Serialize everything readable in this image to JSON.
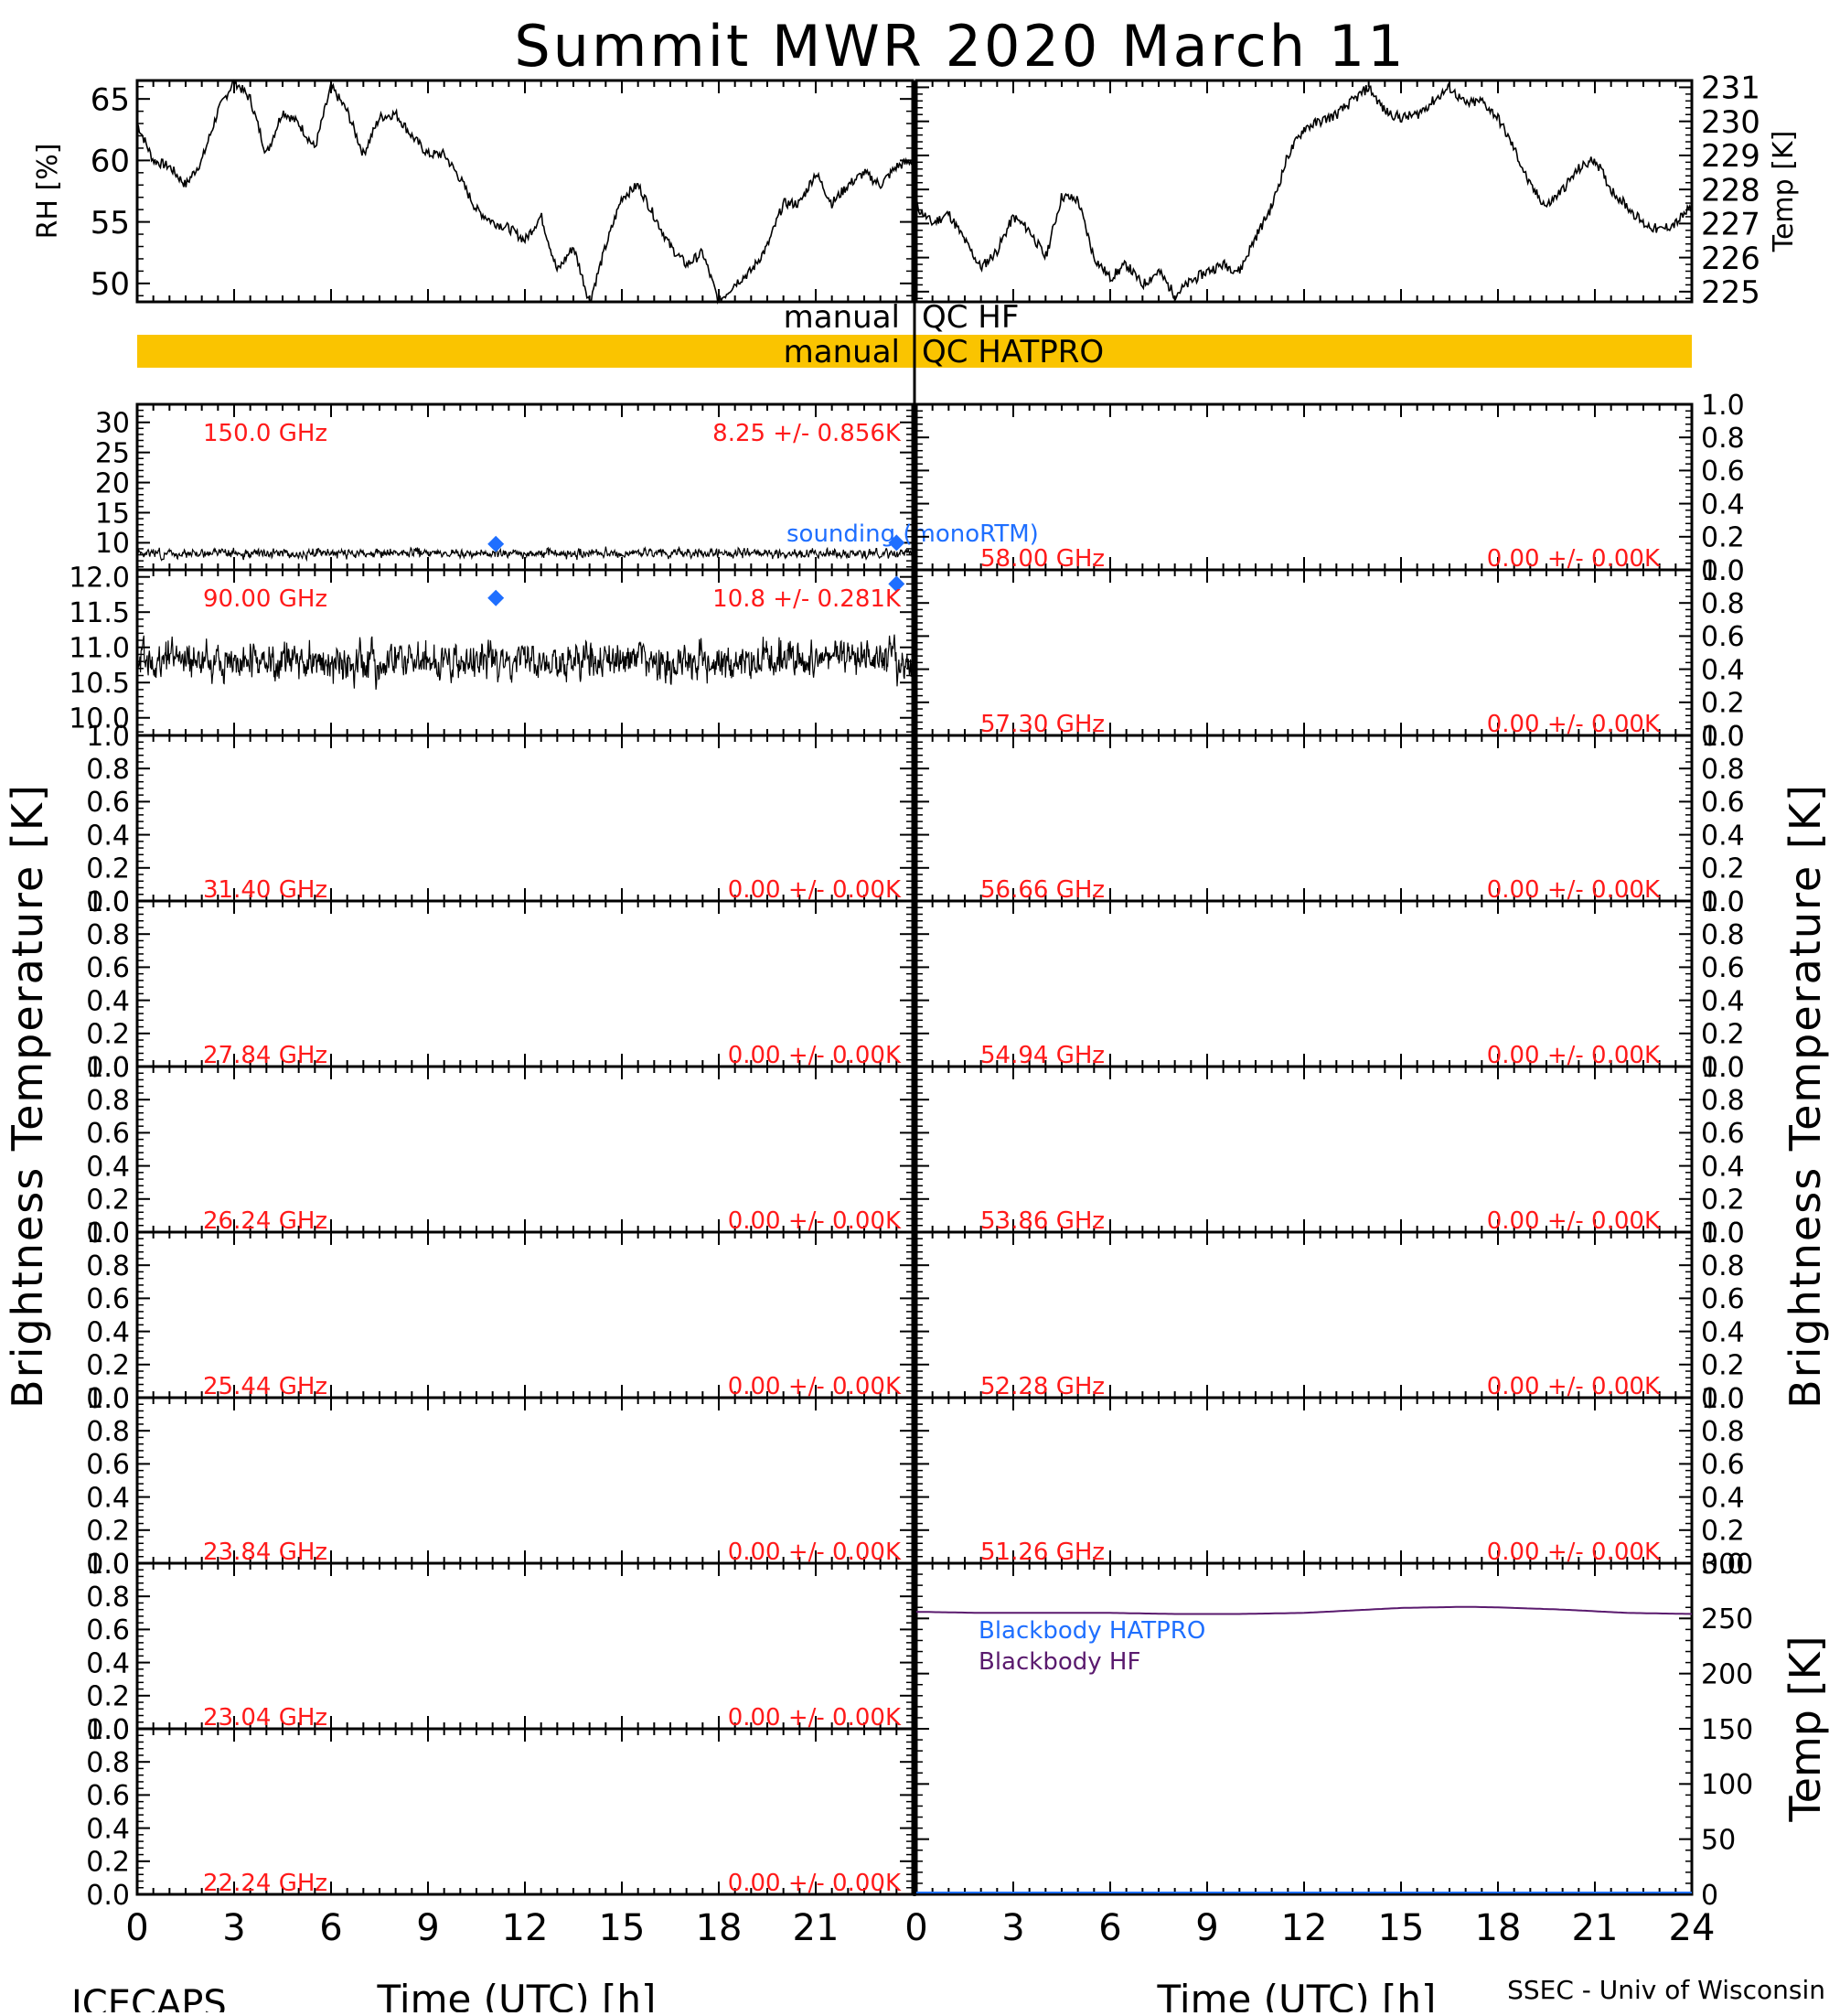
{
  "title": "Summit MWR 2020 March 11",
  "footer": {
    "left": "ICECAPS",
    "right": "SSEC - Univ of Wisconsin"
  },
  "x_axis": {
    "label": "Time (UTC) [h]",
    "ticks_left": [
      "0",
      "3",
      "6",
      "9",
      "12",
      "15",
      "18",
      "21"
    ],
    "ticks_right": [
      "0",
      "3",
      "6",
      "9",
      "12",
      "15",
      "18",
      "21",
      "24"
    ]
  },
  "left_ylabel": "Brightness Temperature [K]",
  "right_ylabel": "Brightness Temperature [K]",
  "qc": {
    "hf_prefix": "manual",
    "hf_label": "QC HF",
    "hatpro_prefix": "manual",
    "hatpro_label": "QC HATPRO",
    "hatpro_color": "#fac400"
  },
  "colors": {
    "series": "#000000",
    "label": "#ff1a1a",
    "sounding": "#1f6fff",
    "bb_hf": "#5a1a6e"
  },
  "chart_data": [
    {
      "type": "line",
      "id": "rh",
      "ylabel": "RH [%]",
      "xlim": [
        0,
        24
      ],
      "ylim": [
        48.5,
        66.5
      ],
      "yticks": [
        "50",
        "55",
        "60",
        "65"
      ],
      "x": [
        0,
        0.5,
        1,
        1.5,
        2,
        2.5,
        3,
        3.5,
        4,
        4.5,
        5,
        5.5,
        6,
        6.5,
        7,
        7.5,
        8,
        8.5,
        9,
        9.5,
        10,
        10.5,
        11,
        11.5,
        12,
        12.5,
        13,
        13.5,
        14,
        14.5,
        15,
        15.5,
        16,
        16.5,
        17,
        17.5,
        18,
        18.5,
        19,
        19.5,
        20,
        20.5,
        21,
        21.5,
        22,
        22.5,
        23,
        23.5,
        24
      ],
      "values": [
        63,
        60,
        59.5,
        58,
        60,
        64,
        66.5,
        65,
        60.5,
        64,
        63,
        61,
        66,
        64,
        60.5,
        63.5,
        63.8,
        62,
        60.5,
        60.5,
        58.5,
        56,
        55,
        54.5,
        53.5,
        55.5,
        51,
        53,
        48.5,
        53,
        57,
        58,
        55.5,
        53,
        51.5,
        52.5,
        48.5,
        50,
        51,
        53,
        56.5,
        56.5,
        59,
        56.5,
        58,
        59,
        58,
        59.5,
        60
      ]
    },
    {
      "type": "line",
      "id": "temp",
      "ylabel": "Temp [K]",
      "xlim": [
        0,
        24
      ],
      "ylim": [
        224.7,
        231.2
      ],
      "yticks": [
        "225",
        "226",
        "227",
        "228",
        "229",
        "230",
        "231"
      ],
      "x": [
        0,
        0.5,
        1,
        1.5,
        2,
        2.5,
        3,
        3.5,
        4,
        4.5,
        5,
        5.5,
        6,
        6.5,
        7,
        7.5,
        8,
        8.5,
        9,
        9.5,
        10,
        10.5,
        11,
        11.5,
        12,
        12.5,
        13,
        13.5,
        14,
        14.5,
        15,
        15.5,
        16,
        16.5,
        17,
        17.5,
        18,
        18.5,
        19,
        19.5,
        20,
        20.5,
        21,
        21.5,
        22,
        22.5,
        23,
        23.5,
        24
      ],
      "values": [
        227.5,
        227.0,
        227.3,
        226.5,
        225.7,
        226.2,
        227.2,
        226.8,
        226.0,
        227.8,
        227.7,
        226.0,
        225.4,
        225.8,
        225.2,
        225.6,
        224.9,
        225.3,
        225.6,
        225.8,
        225.6,
        226.6,
        227.5,
        229.0,
        229.8,
        230.0,
        230.2,
        230.6,
        231.0,
        230.3,
        230.1,
        230.2,
        230.6,
        231.0,
        230.5,
        230.6,
        230.1,
        229.2,
        228.1,
        227.5,
        228.0,
        228.6,
        228.9,
        228.0,
        227.5,
        227.0,
        226.8,
        227.0,
        227.5
      ]
    },
    {
      "type": "line",
      "id": "tb150",
      "ylim": [
        5.5,
        33
      ],
      "yticks": [
        "10",
        "15",
        "20",
        "25",
        "30"
      ],
      "freq_label": "150.0 GHz",
      "stat_label": "8.25 +/- 0.856K",
      "mean": 8.25,
      "std": 0.856,
      "sounding_label": "sounding (monoRTM)",
      "sounding": {
        "x": [
          11.1,
          23.5
        ],
        "values": [
          9.8,
          10.0
        ]
      }
    },
    {
      "type": "line",
      "id": "tb90",
      "ylim": [
        9.75,
        12.1
      ],
      "yticks": [
        "10.0",
        "10.5",
        "11.0",
        "11.5",
        "12.0"
      ],
      "freq_label": "90.00 GHz",
      "stat_label": "10.8 +/- 0.281K",
      "mean": 10.8,
      "std": 0.281,
      "sounding": {
        "x": [
          11.1,
          23.5
        ],
        "values": [
          11.7,
          11.9
        ]
      }
    },
    {
      "type": "line",
      "id": "tb3140",
      "ylim": [
        0,
        1
      ],
      "yticks": [
        "0.0",
        "0.2",
        "0.4",
        "0.6",
        "0.8",
        "1.0"
      ],
      "freq_label": "31.40 GHz",
      "stat_label": "0.00 +/- 0.00K",
      "values": []
    },
    {
      "type": "line",
      "id": "tb2784",
      "ylim": [
        0,
        1
      ],
      "yticks": [
        "0.0",
        "0.2",
        "0.4",
        "0.6",
        "0.8",
        "1.0"
      ],
      "freq_label": "27.84 GHz",
      "stat_label": "0.00 +/- 0.00K",
      "values": []
    },
    {
      "type": "line",
      "id": "tb2624",
      "ylim": [
        0,
        1
      ],
      "yticks": [
        "0.0",
        "0.2",
        "0.4",
        "0.6",
        "0.8",
        "1.0"
      ],
      "freq_label": "26.24 GHz",
      "stat_label": "0.00 +/- 0.00K",
      "values": []
    },
    {
      "type": "line",
      "id": "tb2544",
      "ylim": [
        0,
        1
      ],
      "yticks": [
        "0.0",
        "0.2",
        "0.4",
        "0.6",
        "0.8",
        "1.0"
      ],
      "freq_label": "25.44 GHz",
      "stat_label": "0.00 +/- 0.00K",
      "values": []
    },
    {
      "type": "line",
      "id": "tb2384",
      "ylim": [
        0,
        1
      ],
      "yticks": [
        "0.0",
        "0.2",
        "0.4",
        "0.6",
        "0.8",
        "1.0"
      ],
      "freq_label": "23.84 GHz",
      "stat_label": "0.00 +/- 0.00K",
      "values": []
    },
    {
      "type": "line",
      "id": "tb2304",
      "ylim": [
        0,
        1
      ],
      "yticks": [
        "0.0",
        "0.2",
        "0.4",
        "0.6",
        "0.8",
        "1.0"
      ],
      "freq_label": "23.04 GHz",
      "stat_label": "0.00 +/- 0.00K",
      "values": []
    },
    {
      "type": "line",
      "id": "tb2224",
      "ylim": [
        0,
        1
      ],
      "yticks": [
        "0.0",
        "0.2",
        "0.4",
        "0.6",
        "0.8",
        "1.0"
      ],
      "freq_label": "22.24 GHz",
      "stat_label": "0.00 +/- 0.00K",
      "values": []
    },
    {
      "type": "line",
      "id": "tb5800",
      "ylim": [
        0,
        1
      ],
      "yticks": [
        "0.0",
        "0.2",
        "0.4",
        "0.6",
        "0.8",
        "1.0"
      ],
      "freq_label": "58.00 GHz",
      "stat_label": "0.00 +/- 0.00K",
      "values": []
    },
    {
      "type": "line",
      "id": "tb5730",
      "ylim": [
        0,
        1
      ],
      "yticks": [
        "0.0",
        "0.2",
        "0.4",
        "0.6",
        "0.8",
        "1.0"
      ],
      "freq_label": "57.30 GHz",
      "stat_label": "0.00 +/- 0.00K",
      "values": []
    },
    {
      "type": "line",
      "id": "tb5666",
      "ylim": [
        0,
        1
      ],
      "yticks": [
        "0.0",
        "0.2",
        "0.4",
        "0.6",
        "0.8",
        "1.0"
      ],
      "freq_label": "56.66 GHz",
      "stat_label": "0.00 +/- 0.00K",
      "values": []
    },
    {
      "type": "line",
      "id": "tb5494",
      "ylim": [
        0,
        1
      ],
      "yticks": [
        "0.0",
        "0.2",
        "0.4",
        "0.6",
        "0.8",
        "1.0"
      ],
      "freq_label": "54.94 GHz",
      "stat_label": "0.00 +/- 0.00K",
      "values": []
    },
    {
      "type": "line",
      "id": "tb5386",
      "ylim": [
        0,
        1
      ],
      "yticks": [
        "0.0",
        "0.2",
        "0.4",
        "0.6",
        "0.8",
        "1.0"
      ],
      "freq_label": "53.86 GHz",
      "stat_label": "0.00 +/- 0.00K",
      "values": []
    },
    {
      "type": "line",
      "id": "tb5228",
      "ylim": [
        0,
        1
      ],
      "yticks": [
        "0.0",
        "0.2",
        "0.4",
        "0.6",
        "0.8",
        "1.0"
      ],
      "freq_label": "52.28 GHz",
      "stat_label": "0.00 +/- 0.00K",
      "values": []
    },
    {
      "type": "line",
      "id": "tb5126",
      "ylim": [
        0,
        1
      ],
      "yticks": [
        "0.0",
        "0.2",
        "0.4",
        "0.6",
        "0.8",
        "1.0"
      ],
      "freq_label": "51.26 GHz",
      "stat_label": "0.00 +/- 0.00K",
      "values": []
    },
    {
      "type": "line",
      "id": "blackbody",
      "ylabel": "Temp [K]",
      "ylim": [
        0,
        300
      ],
      "yticks": [
        "0",
        "50",
        "100",
        "150",
        "200",
        "250",
        "300"
      ],
      "series": [
        {
          "name": "Blackbody HATPRO",
          "values": []
        },
        {
          "name": "Blackbody HF",
          "x": [
            0,
            2,
            4,
            6,
            8,
            10,
            12,
            14,
            15,
            16,
            17,
            18,
            19,
            20,
            21,
            22,
            24
          ],
          "values": [
            256,
            255,
            255,
            255,
            254,
            254,
            255,
            258,
            259.5,
            260,
            260.5,
            260,
            259,
            258,
            256.5,
            255,
            254
          ]
        }
      ]
    }
  ]
}
